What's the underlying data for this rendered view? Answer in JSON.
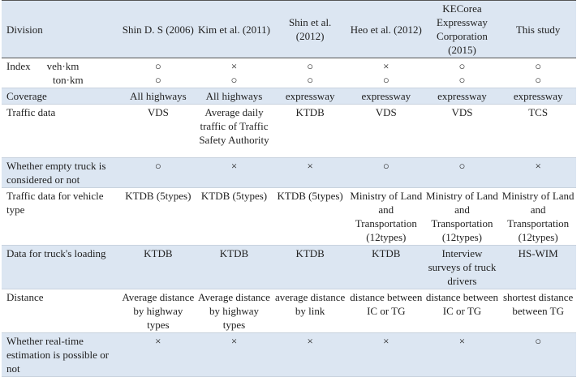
{
  "table": {
    "header": [
      "Division",
      "Shin D. S (2006)",
      "Kim et al. (2011)",
      "Shin et al. (2012)",
      "Heo et al. (2012)",
      "KECorea Expressway Corporation (2015)",
      "This study"
    ],
    "index_row": {
      "label": "Index",
      "units": [
        "veh·km",
        "ton·km"
      ],
      "cells": [
        [
          "○",
          "○"
        ],
        [
          "×",
          "○"
        ],
        [
          "○",
          "○"
        ],
        [
          "×",
          "○"
        ],
        [
          "○",
          "○"
        ],
        [
          "○",
          "○"
        ]
      ]
    },
    "rows": [
      {
        "label": "Coverage",
        "cells": [
          "All highways",
          "All highways",
          "expressway",
          "expressway",
          "expressway",
          "expressway"
        ]
      },
      {
        "label": "Traffic data",
        "cells": [
          "VDS",
          "Average daily traffic of Traffic Safety Authority",
          "KTDB",
          "VDS",
          "VDS",
          "TCS"
        ]
      },
      {
        "label": "Whether empty truck is considered or not",
        "cells": [
          "○",
          "×",
          "×",
          "○",
          "○",
          "×"
        ]
      },
      {
        "label": "Traffic data for vehicle type",
        "cells": [
          "KTDB (5types)",
          "KTDB (5types)",
          "KTDB (5types)",
          "Ministry of Land and Transportation (12types)",
          "Ministry of Land and Transportation (12types)",
          "Ministry of Land and Transportation (12types)"
        ]
      },
      {
        "label": "Data for truck's loading",
        "cells": [
          "KTDB",
          "KTDB",
          "KTDB",
          "KTDB",
          "Interview surveys of truck drivers",
          "HS-WIM"
        ]
      },
      {
        "label": "Distance",
        "cells": [
          "Average distance by highway types",
          "Average distance by highway types",
          "average distance by link",
          "distance between IC or TG",
          "distance between IC or TG",
          "shortest distance between TG"
        ]
      },
      {
        "label": "Whether real-time estimation is possible or not",
        "cells": [
          "×",
          "×",
          "×",
          "×",
          "×",
          "○"
        ]
      }
    ]
  }
}
